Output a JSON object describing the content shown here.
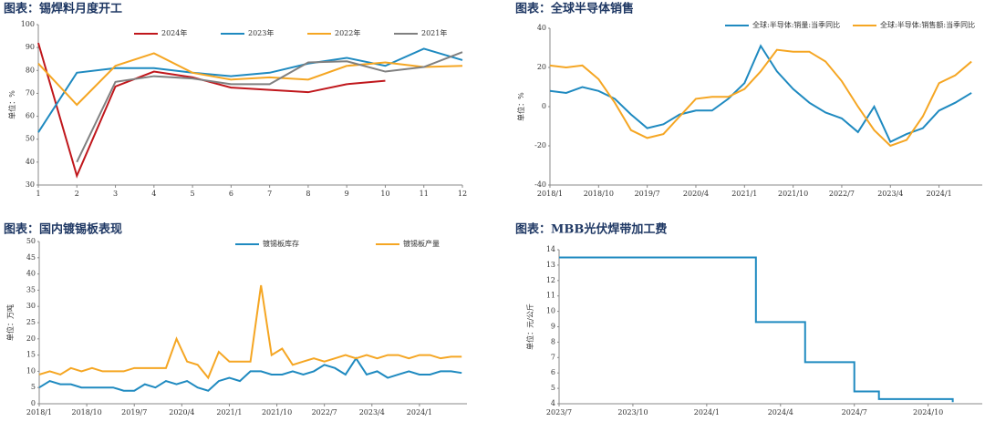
{
  "chart_data": [
    {
      "type": "line",
      "title": "图表：锡焊料月度开工",
      "y_label": "单位：%",
      "x": [
        1,
        2,
        3,
        4,
        5,
        6,
        7,
        8,
        9,
        10,
        11,
        12
      ],
      "xlim": [
        1,
        12
      ],
      "xticks": [
        1,
        2,
        3,
        4,
        5,
        6,
        7,
        8,
        9,
        10,
        11,
        12
      ],
      "ylim": [
        30,
        100
      ],
      "yticks": [
        30,
        40,
        50,
        60,
        70,
        80,
        90,
        100
      ],
      "series": [
        {
          "name": "2024年",
          "color": "#c0171c",
          "values": [
            92,
            34,
            73,
            79.5,
            77,
            72.5,
            71.5,
            70.5,
            74,
            75.5,
            null,
            null
          ]
        },
        {
          "name": "2023年",
          "color": "#1f8ac0",
          "values": [
            53,
            79,
            81,
            81,
            79,
            77.5,
            79,
            83,
            85.5,
            82,
            89.5,
            84.5
          ]
        },
        {
          "name": "2022年",
          "color": "#f5a623",
          "values": [
            83,
            65,
            82,
            87.5,
            79,
            76,
            77,
            76,
            82,
            83.5,
            81.5,
            82
          ]
        },
        {
          "name": "2021年",
          "color": "#808080",
          "values": [
            null,
            40,
            75,
            77.5,
            76.5,
            74,
            74,
            83.5,
            84,
            79.5,
            81.5,
            88
          ]
        }
      ]
    },
    {
      "type": "line",
      "title": "图表：全球半导体销售",
      "y_label": "单位：%",
      "x": [
        "2018/1",
        "2018/4",
        "2018/7",
        "2018/10",
        "2019/1",
        "2019/4",
        "2019/7",
        "2019/10",
        "2020/1",
        "2020/4",
        "2020/7",
        "2020/10",
        "2021/1",
        "2021/4",
        "2021/7",
        "2021/10",
        "2022/1",
        "2022/4",
        "2022/7",
        "2022/10",
        "2023/1",
        "2023/4",
        "2023/7",
        "2023/10",
        "2024/1",
        "2024/4",
        "2024/7"
      ],
      "xticks": [
        "2018/1",
        "2018/10",
        "2019/7",
        "2020/4",
        "2021/1",
        "2021/10",
        "2022/7",
        "2023/4",
        "2024/1"
      ],
      "ylim": [
        -40,
        40
      ],
      "yticks": [
        -40,
        -20,
        0,
        20,
        40
      ],
      "series": [
        {
          "name": "全球:半导体:销量:当季同比",
          "color": "#1f8ac0",
          "values": [
            8,
            7,
            10,
            8,
            4,
            -4,
            -11,
            -9,
            -4,
            -2,
            -2,
            4,
            12,
            31,
            18,
            9,
            2,
            -3,
            -6,
            -13,
            0,
            -18,
            -14,
            -11,
            -2,
            2,
            7
          ]
        },
        {
          "name": "全球:半导体:销售额:当季同比",
          "color": "#f5a623",
          "values": [
            21,
            20,
            21,
            14,
            2,
            -12,
            -16,
            -14,
            -5,
            4,
            5,
            5,
            9,
            18,
            29,
            28,
            28,
            23,
            13,
            0,
            -12,
            -20,
            -17,
            -5,
            12,
            16,
            23
          ]
        }
      ]
    },
    {
      "type": "line",
      "title": "图表：国内镀锡板表现",
      "y_label": "单位：万吨",
      "x": [
        "2018/1",
        "2018/3",
        "2018/5",
        "2018/7",
        "2018/9",
        "2018/11",
        "2019/1",
        "2019/3",
        "2019/5",
        "2019/7",
        "2019/9",
        "2019/11",
        "2020/1",
        "2020/3",
        "2020/5",
        "2020/7",
        "2020/9",
        "2020/11",
        "2021/1",
        "2021/3",
        "2021/5",
        "2021/7",
        "2021/9",
        "2021/11",
        "2022/1",
        "2022/3",
        "2022/5",
        "2022/7",
        "2022/9",
        "2022/11",
        "2023/1",
        "2023/3",
        "2023/5",
        "2023/7",
        "2023/9",
        "2023/11",
        "2024/1",
        "2024/3",
        "2024/5",
        "2024/7",
        "2024/9"
      ],
      "xticks": [
        "2018/1",
        "2018/10",
        "2019/7",
        "2020/4",
        "2021/1",
        "2021/10",
        "2022/7",
        "2023/4",
        "2024/1"
      ],
      "ylim": [
        0,
        50
      ],
      "yticks": [
        0,
        5,
        10,
        15,
        20,
        25,
        30,
        35,
        40,
        45,
        50
      ],
      "series": [
        {
          "name": "镀锡板库存",
          "color": "#1f8ac0",
          "values": [
            5,
            7,
            6,
            6,
            5,
            5,
            5,
            5,
            4,
            4,
            6,
            5,
            7,
            6,
            7,
            5,
            4,
            7,
            8,
            7,
            10,
            10,
            9,
            9,
            10,
            9,
            10,
            12,
            11,
            9,
            14,
            9,
            10,
            8,
            9,
            10,
            9,
            9,
            10,
            10,
            9.5
          ]
        },
        {
          "name": "镀锡板产量",
          "color": "#f5a623",
          "values": [
            9,
            10,
            9,
            11,
            10,
            11,
            10,
            10,
            10,
            11,
            11,
            11,
            11,
            20,
            13,
            12,
            8,
            16,
            13,
            13,
            13,
            36.5,
            15,
            17,
            12,
            13,
            14,
            13,
            14,
            15,
            14,
            15,
            14,
            15,
            15,
            14,
            15,
            15,
            14,
            14.5,
            14.5
          ]
        }
      ]
    },
    {
      "type": "line",
      "step": true,
      "title": "图表：MBB光伏焊带加工费",
      "y_label": "单位：元/公斤",
      "x": [
        "2023/7",
        "2023/8",
        "2023/9",
        "2023/10",
        "2023/11",
        "2023/12",
        "2024/1",
        "2024/2",
        "2024/3",
        "2024/4",
        "2024/5",
        "2024/6",
        "2024/7",
        "2024/8",
        "2024/9",
        "2024/10",
        "2024/11"
      ],
      "xticks": [
        "2023/7",
        "2023/10",
        "2024/1",
        "2024/4",
        "2024/7",
        "2024/10"
      ],
      "ylim": [
        4,
        14
      ],
      "yticks": [
        4,
        5,
        6,
        7,
        8,
        9,
        10,
        11,
        12,
        13,
        14
      ],
      "series": [
        {
          "color": "#1f8ac0",
          "values": [
            13.5,
            13.5,
            13.5,
            13.5,
            13.5,
            13.5,
            13.5,
            13.5,
            9.3,
            9.3,
            6.7,
            6.7,
            4.8,
            4.3,
            4.3,
            4.3,
            4.1
          ]
        }
      ]
    }
  ]
}
